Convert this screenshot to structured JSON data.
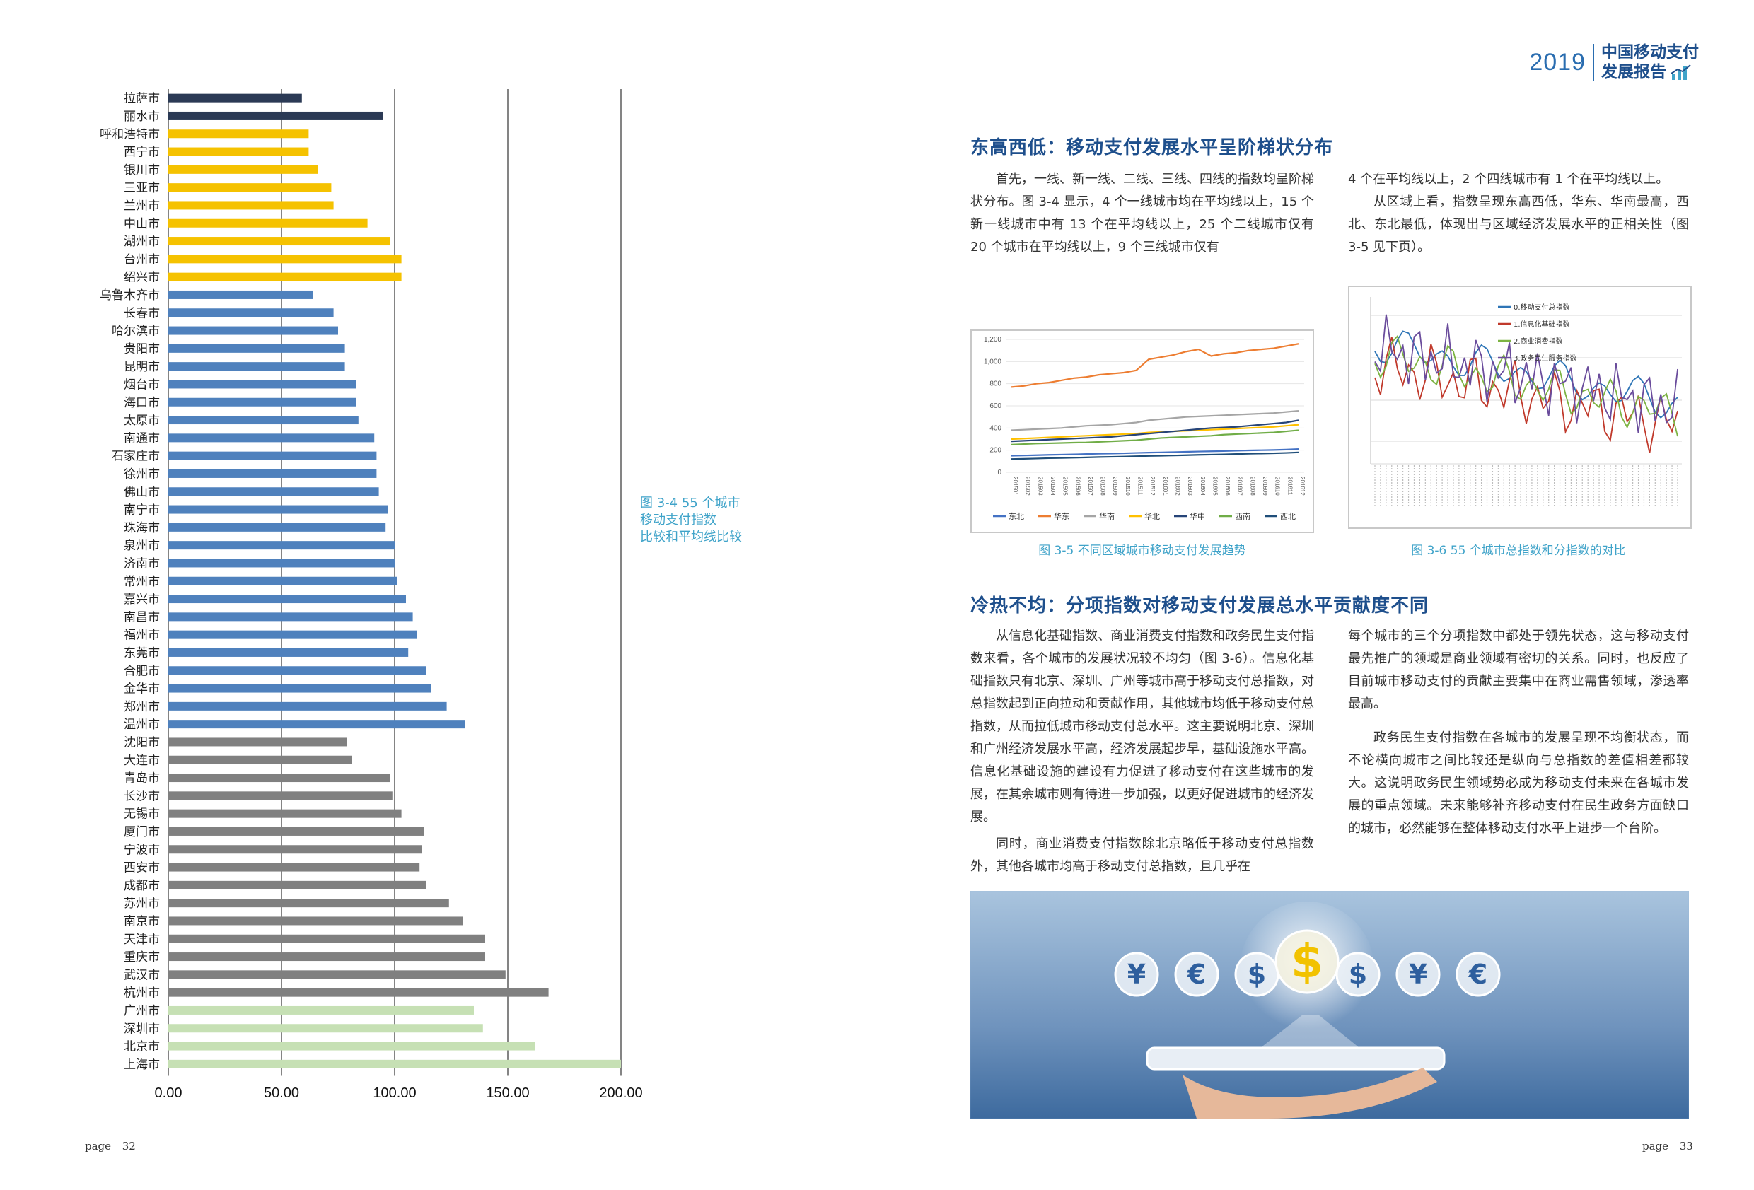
{
  "left_page": {
    "chart_data": {
      "type": "bar",
      "orientation": "horizontal",
      "title": "图 3-4 55 个城市移动支付指数比较和平均线比较",
      "xlim": [
        0,
        200
      ],
      "xticks": [
        "0.00",
        "50.00",
        "100.00",
        "150.00",
        "200.00"
      ],
      "categories": [
        "拉萨市",
        "丽水市",
        "呼和浩特市",
        "西宁市",
        "银川市",
        "三亚市",
        "兰州市",
        "中山市",
        "湖州市",
        "台州市",
        "绍兴市",
        "乌鲁木齐市",
        "长春市",
        "哈尔滨市",
        "贵阳市",
        "昆明市",
        "烟台市",
        "海口市",
        "太原市",
        "南通市",
        "石家庄市",
        "徐州市",
        "佛山市",
        "南宁市",
        "珠海市",
        "泉州市",
        "济南市",
        "常州市",
        "嘉兴市",
        "南昌市",
        "福州市",
        "东莞市",
        "合肥市",
        "金华市",
        "郑州市",
        "温州市",
        "沈阳市",
        "大连市",
        "青岛市",
        "长沙市",
        "无锡市",
        "厦门市",
        "宁波市",
        "西安市",
        "成都市",
        "苏州市",
        "南京市",
        "天津市",
        "重庆市",
        "武汉市",
        "杭州市",
        "广州市",
        "深圳市",
        "北京市",
        "上海市"
      ],
      "values": [
        59,
        95,
        62,
        62,
        66,
        72,
        73,
        88,
        98,
        103,
        103,
        64,
        73,
        75,
        78,
        78,
        83,
        83,
        84,
        91,
        92,
        92,
        93,
        97,
        96,
        100,
        100,
        101,
        105,
        108,
        110,
        106,
        114,
        116,
        123,
        131,
        79,
        81,
        98,
        99,
        103,
        113,
        112,
        111,
        114,
        124,
        130,
        140,
        140,
        149,
        168,
        135,
        139,
        162,
        200
      ],
      "groups": [
        "四线",
        "四线",
        "三线",
        "三线",
        "三线",
        "三线",
        "三线",
        "三线",
        "三线",
        "三线",
        "三线",
        "二线",
        "二线",
        "二线",
        "二线",
        "二线",
        "二线",
        "二线",
        "二线",
        "二线",
        "二线",
        "二线",
        "二线",
        "二线",
        "二线",
        "二线",
        "二线",
        "二线",
        "二线",
        "二线",
        "二线",
        "二线",
        "二线",
        "二线",
        "二线",
        "二线",
        "新一线",
        "新一线",
        "新一线",
        "新一线",
        "新一线",
        "新一线",
        "新一线",
        "新一线",
        "新一线",
        "新一线",
        "新一线",
        "新一线",
        "新一线",
        "新一线",
        "新一线",
        "一线",
        "一线",
        "一线",
        "一线"
      ],
      "group_colors": {
        "四线": "#2b3a55",
        "三线": "#f5c200",
        "二线": "#4f81bd",
        "新一线": "#808080",
        "一线": "#c6e0b4"
      },
      "reference_lines": [
        50,
        100,
        150,
        200
      ]
    },
    "caption_lines": [
      "图 3-4 55 个城市",
      "移动支付指数",
      "比较和平均线比较"
    ],
    "page_label": "page",
    "page_number": "32"
  },
  "header": {
    "year": "2019",
    "title_line1": "中国移动支付",
    "title_line2": "发展报告"
  },
  "section1": {
    "title": "东高西低：移动支付发展水平呈阶梯状分布",
    "col1": "首先，一线、新一线、二线、三线、四线的指数均呈阶梯状分布。图 3-4 显示，4 个一线城市均在平均线以上，15 个新一线城市中有 13 个在平均线以上，25 个二线城市仅有 20 个城市在平均线以上，9 个三线城市仅有",
    "col2_p1": "4 个在平均线以上，2 个四线城市有 1 个在平均线以上。",
    "col2_p2": "从区域上看，指数呈现东高西低，华东、华南最高，西北、东北最低，体现出与区域经济发展水平的正相关性（图 3-5 见下页）。"
  },
  "fig35": {
    "caption": "图 3-5  不同区域城市移动支付发展趋势",
    "chart_data": {
      "type": "line",
      "ylim": [
        0,
        1200
      ],
      "yticks": [
        "1,200",
        "1,000",
        "800",
        "600",
        "400",
        "200",
        "0"
      ],
      "x": [
        "201501",
        "201502",
        "201503",
        "201504",
        "201505",
        "201506",
        "201507",
        "201508",
        "201509",
        "201510",
        "201511",
        "201512",
        "201601",
        "201602",
        "201603",
        "201604",
        "201605",
        "201606",
        "201607",
        "201608",
        "201609",
        "201610",
        "201611",
        "201612"
      ],
      "series": [
        {
          "name": "东北",
          "color": "#4472c4",
          "values": [
            150,
            152,
            155,
            158,
            160,
            162,
            165,
            168,
            170,
            172,
            175,
            178,
            180,
            182,
            185,
            188,
            190,
            192,
            195,
            198,
            200,
            202,
            205,
            210
          ]
        },
        {
          "name": "华东",
          "color": "#ed7d31",
          "values": [
            770,
            780,
            800,
            810,
            830,
            850,
            860,
            880,
            890,
            900,
            920,
            1020,
            1040,
            1060,
            1090,
            1110,
            1050,
            1070,
            1080,
            1100,
            1110,
            1120,
            1140,
            1160
          ]
        },
        {
          "name": "华南",
          "color": "#a5a5a5",
          "values": [
            380,
            385,
            390,
            395,
            400,
            410,
            420,
            425,
            430,
            440,
            450,
            470,
            480,
            490,
            500,
            505,
            510,
            515,
            520,
            525,
            530,
            535,
            545,
            555
          ]
        },
        {
          "name": "华北",
          "color": "#ffc000",
          "values": [
            300,
            305,
            310,
            315,
            320,
            325,
            330,
            335,
            340,
            345,
            350,
            360,
            365,
            370,
            375,
            380,
            385,
            390,
            395,
            400,
            405,
            410,
            420,
            430
          ]
        },
        {
          "name": "华中",
          "color": "#264478",
          "values": [
            280,
            285,
            290,
            295,
            300,
            305,
            310,
            315,
            320,
            330,
            340,
            350,
            360,
            370,
            380,
            390,
            400,
            405,
            410,
            420,
            430,
            440,
            450,
            470
          ]
        },
        {
          "name": "西南",
          "color": "#70ad47",
          "values": [
            250,
            255,
            260,
            262,
            265,
            268,
            270,
            275,
            280,
            285,
            290,
            300,
            310,
            315,
            320,
            325,
            330,
            340,
            345,
            350,
            355,
            360,
            370,
            380
          ]
        },
        {
          "name": "西北",
          "color": "#1f4e79",
          "values": [
            120,
            122,
            125,
            128,
            130,
            132,
            135,
            138,
            140,
            142,
            145,
            148,
            150,
            152,
            155,
            158,
            160,
            162,
            165,
            168,
            170,
            172,
            175,
            180
          ]
        }
      ]
    }
  },
  "fig36": {
    "caption": "图 3-6  55 个城市总指数和分指数的对比",
    "chart_data": {
      "type": "line",
      "series": [
        {
          "name": "0.移动支付总指数",
          "color": "#2e75b6"
        },
        {
          "name": "1.信息化基础指数",
          "color": "#c0392b"
        },
        {
          "name": "2.商业消费指数",
          "color": "#7cb342"
        },
        {
          "name": "3.政务民生服务指数",
          "color": "#6a4c9c"
        }
      ]
    }
  },
  "section2": {
    "title": "冷热不均：分项指数对移动支付发展总水平贡献度不同",
    "col1_p1": "从信息化基础指数、商业消费支付指数和政务民生支付指数来看，各个城市的发展状况较不均匀（图 3-6）。信息化基础指数只有北京、深圳、广州等城市高于移动支付总指数，对总指数起到正向拉动和贡献作用，其他城市均低于移动支付总指数，从而拉低城市移动支付总水平。这主要说明北京、深圳和广州经济发展水平高，经济发展起步早，基础设施水平高。信息化基础设施的建设有力促进了移动支付在这些城市的发展，在其余城市则有待进一步加强，以更好促进城市的经济发展。",
    "col1_p2": "同时，商业消费支付指数除北京略低于移动支付总指数外，其他各城市均高于移动支付总指数，且几乎在",
    "col2_p1": "每个城市的三个分项指数中都处于领先状态，这与移动支付最先推广的领域是商业领域有密切的关系。同时，也反应了目前城市移动支付的贡献主要集中在商业需售领域，渗透率最高。",
    "col2_p2": "政务民生支付指数在各城市的发展呈现不均衡状态，而不论横向城市之间比较还是纵向与总指数的差值相差都较大。这说明政务民生领域势必成为移动支付未来在各城市发展的重点领域。未来能够补齐移动支付在民生政务方面缺口的城市，必然能够在整体移动支付水平上进步一个台阶。"
  },
  "banner": {
    "coins": [
      "¥",
      "€",
      "$",
      "$",
      "$",
      "¥",
      "€"
    ]
  },
  "right_page": {
    "page_label": "page",
    "page_number": "33"
  },
  "colors": {
    "brand_blue": "#1e4f8c",
    "caption_cyan": "#3fa3c9"
  }
}
